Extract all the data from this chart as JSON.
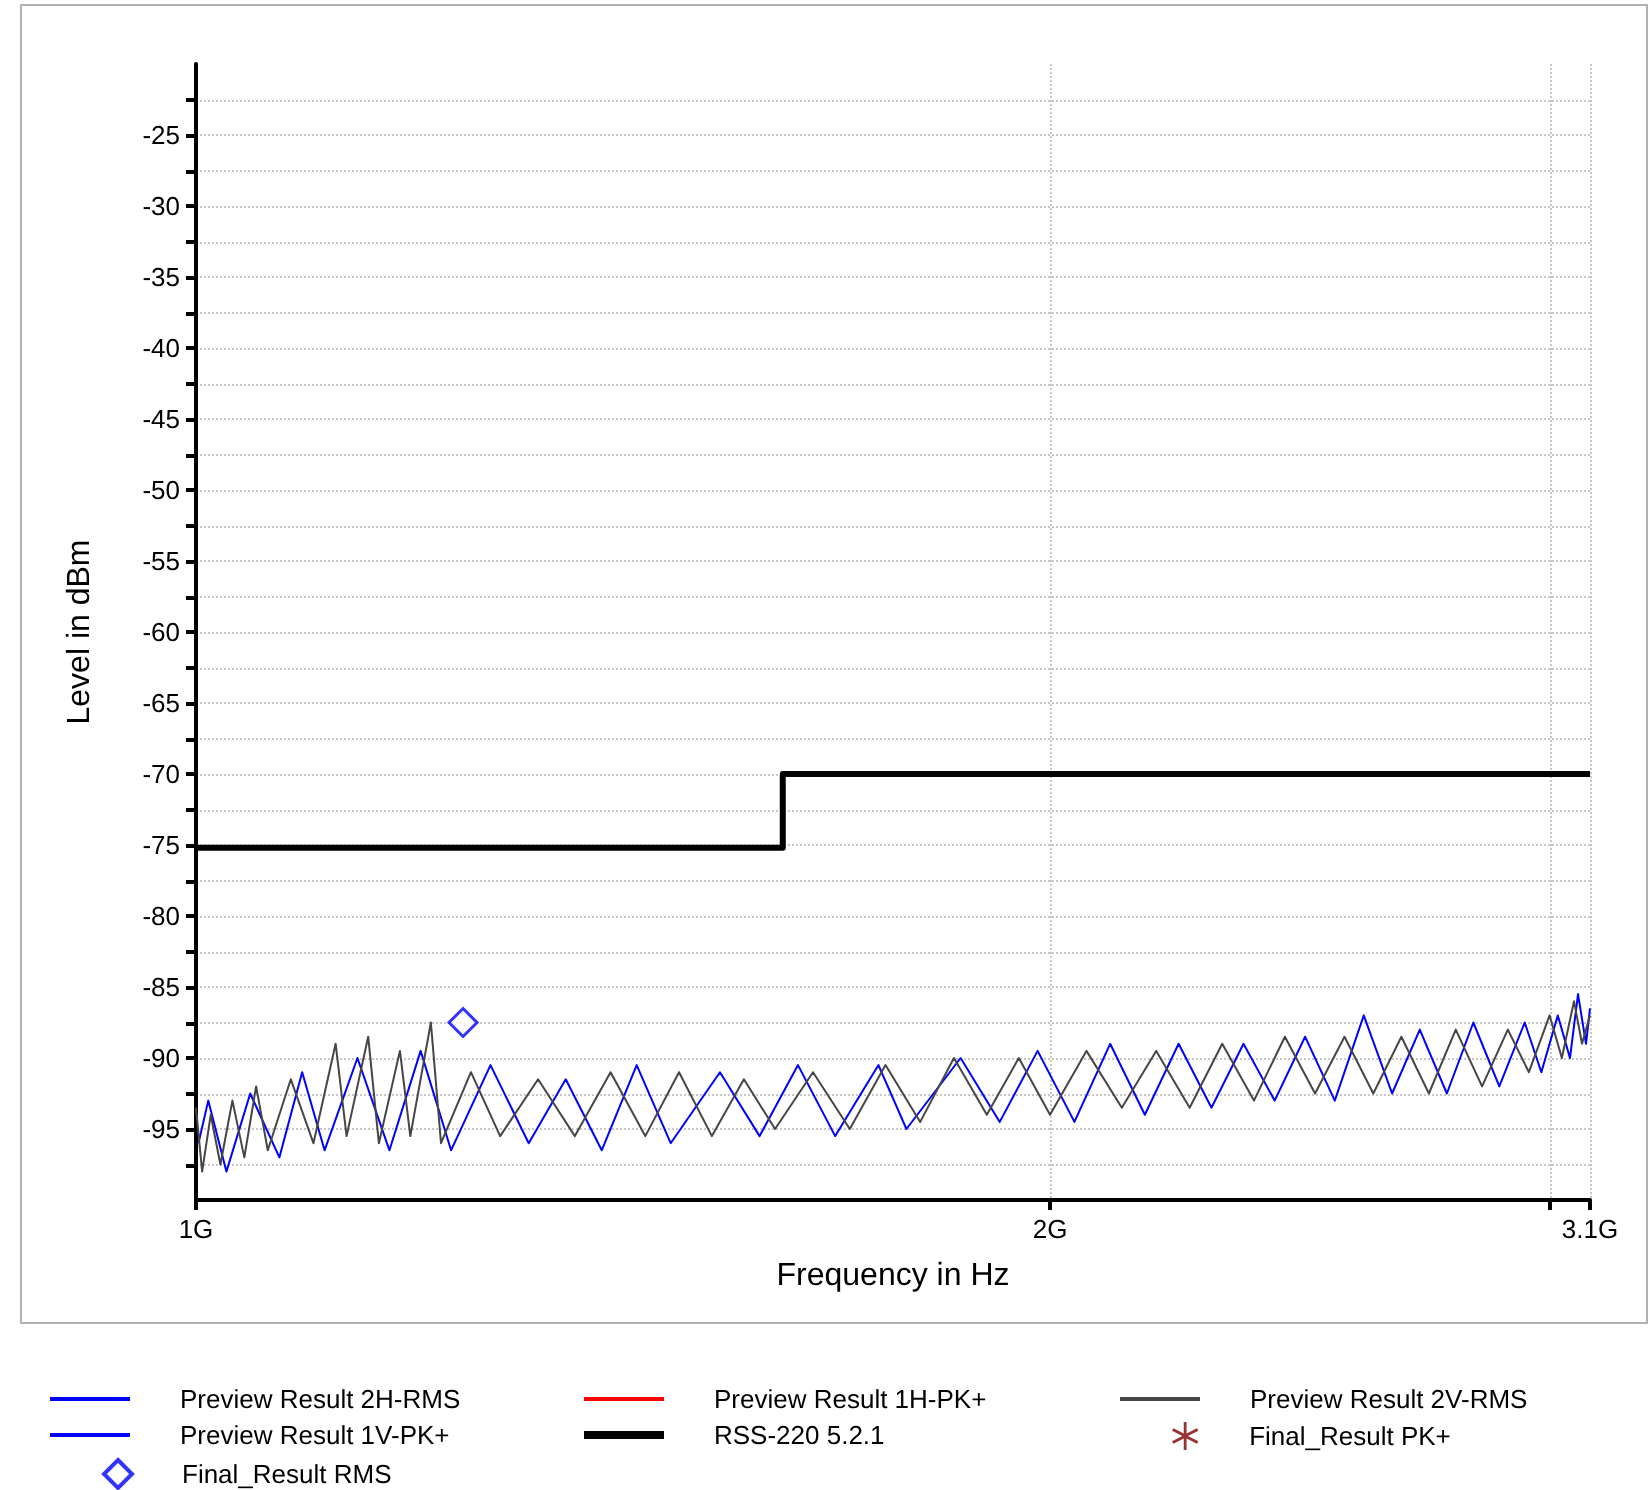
{
  "chart_data": {
    "type": "line",
    "xlabel": "Frequency in Hz",
    "ylabel": "Level in dBm",
    "log": "x",
    "grid": true,
    "legend": "bottom",
    "xlim": [
      1,
      3.1
    ],
    "xticks": [
      {
        "value": 1,
        "label": "1G"
      },
      {
        "value": 2,
        "label": "2G"
      },
      {
        "value": 3,
        "label": null
      },
      {
        "value": 3.1,
        "label": "3.1G"
      }
    ],
    "ylim": [
      -100,
      -20
    ],
    "yticks": [
      {
        "value": -97.5,
        "label": null
      },
      -95,
      {
        "value": -92.5,
        "label": null
      },
      -90,
      {
        "value": -87.5,
        "label": null
      },
      -85,
      {
        "value": -82.5,
        "label": null
      },
      -80,
      {
        "value": -77.5,
        "label": null
      },
      -75,
      {
        "value": -72.5,
        "label": null
      },
      -70,
      {
        "value": -67.5,
        "label": null
      },
      -65,
      {
        "value": -62.5,
        "label": null
      },
      -60,
      {
        "value": -57.5,
        "label": null
      },
      -55,
      {
        "value": -52.5,
        "label": null
      },
      -50,
      {
        "value": -47.5,
        "label": null
      },
      -45,
      {
        "value": -42.5,
        "label": null
      },
      -40,
      {
        "value": -37.5,
        "label": null
      },
      -35,
      {
        "value": -32.5,
        "label": null
      },
      -30,
      {
        "value": -27.5,
        "label": null
      },
      -25,
      {
        "value": -22.5,
        "label": null
      }
    ],
    "series": [
      {
        "name": "Preview Result 2H-RMS",
        "color": "#0000ff",
        "marker": "none",
        "x": [
          1.002,
          1.01,
          1.025,
          1.045,
          1.07,
          1.09,
          1.11,
          1.14,
          1.17,
          1.2,
          1.23,
          1.27,
          1.31,
          1.35,
          1.39,
          1.43,
          1.47,
          1.53,
          1.58,
          1.63,
          1.68,
          1.74,
          1.78,
          1.86,
          1.92,
          1.98,
          2.04,
          2.1,
          2.16,
          2.22,
          2.28,
          2.34,
          2.4,
          2.46,
          2.52,
          2.58,
          2.64,
          2.7,
          2.76,
          2.82,
          2.88,
          2.94,
          2.98,
          3.02,
          3.05,
          3.07,
          3.09,
          3.1
        ],
        "values": [
          -96,
          -93,
          -98,
          -92.5,
          -97,
          -91,
          -96.5,
          -90,
          -96.5,
          -89.5,
          -96.5,
          -90.5,
          -96,
          -91.5,
          -96.5,
          -90.5,
          -96,
          -91,
          -95.5,
          -90.5,
          -95.5,
          -90.5,
          -95,
          -90,
          -94.5,
          -89.5,
          -94.5,
          -89,
          -94,
          -89,
          -93.5,
          -89,
          -93,
          -88.5,
          -93,
          -87,
          -92.5,
          -88,
          -92.5,
          -87.5,
          -92,
          -87.5,
          -91,
          -87,
          -90,
          -85.5,
          -89,
          -86.5
        ]
      },
      {
        "name": "Preview Result 1H-PK+",
        "color": "#ff0000"
      },
      {
        "name": "Preview Result 2V-RMS",
        "color": "#464646",
        "marker": "none",
        "x": [
          1,
          1.005,
          1.012,
          1.02,
          1.03,
          1.04,
          1.05,
          1.06,
          1.08,
          1.1,
          1.12,
          1.13,
          1.15,
          1.16,
          1.18,
          1.19,
          1.21,
          1.22,
          1.25,
          1.28,
          1.32,
          1.36,
          1.4,
          1.44,
          1.48,
          1.52,
          1.56,
          1.6,
          1.65,
          1.7,
          1.75,
          1.8,
          1.85,
          1.9,
          1.95,
          2,
          2.06,
          2.12,
          2.18,
          2.24,
          2.3,
          2.36,
          2.42,
          2.48,
          2.54,
          2.6,
          2.66,
          2.72,
          2.78,
          2.84,
          2.9,
          2.95,
          3,
          3.03,
          3.06,
          3.08,
          3.1
        ],
        "values": [
          -93.5,
          -98,
          -94,
          -97.5,
          -93,
          -97,
          -92,
          -96.5,
          -91.5,
          -96,
          -89,
          -95.5,
          -88.5,
          -96,
          -89.5,
          -95.5,
          -87.5,
          -96,
          -91,
          -95.5,
          -91.5,
          -95.5,
          -91,
          -95.5,
          -91,
          -95.5,
          -91.5,
          -95,
          -91,
          -95,
          -90.5,
          -94.5,
          -90,
          -94,
          -90,
          -94,
          -89.5,
          -93.5,
          -89.5,
          -93.5,
          -89,
          -93,
          -88.5,
          -92.5,
          -88.5,
          -92.5,
          -88.5,
          -92.5,
          -88,
          -92,
          -88,
          -91,
          -87,
          -90,
          -86,
          -89,
          -87
        ]
      },
      {
        "name": "Preview Result 1V-PK+",
        "color": "#0000ff"
      },
      {
        "name": "RSS-220 5.2.1",
        "type": "step",
        "color": "#000000",
        "x": [
          1,
          1.61,
          3.1
        ],
        "values": [
          -75.2,
          -70,
          -70
        ]
      },
      {
        "name": "Final_Result PK+",
        "type": "scatter",
        "color": "#800000",
        "marker": "star"
      },
      {
        "name": "Final_Result RMS",
        "type": "scatter",
        "color": "#0000ff",
        "marker": "diamond",
        "x": [
          1.242
        ],
        "values": [
          -87.5
        ]
      }
    ]
  }
}
